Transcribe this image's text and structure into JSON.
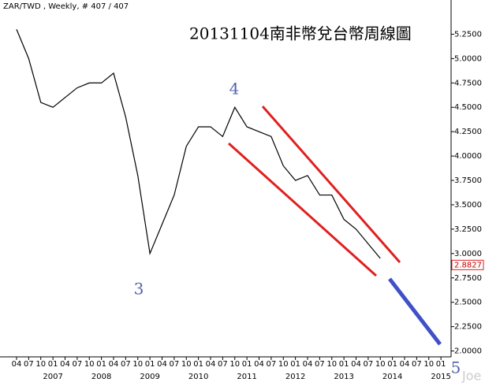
{
  "chart_data": {
    "type": "line",
    "header": "ZAR/TWD , Weekly, # 407 / 407",
    "title": "20131104南非幣兌台幣周線圖",
    "annotations": [
      "3",
      "4",
      "5"
    ],
    "watermark": "Joe",
    "categories": [
      "04",
      "07",
      "10",
      "01",
      "04",
      "07",
      "10",
      "01",
      "04",
      "07",
      "10",
      "01",
      "04",
      "07",
      "10",
      "01",
      "04",
      "07",
      "10",
      "01",
      "04",
      "07",
      "10",
      "01",
      "04",
      "07",
      "10",
      "01",
      "04",
      "07",
      "10",
      "01",
      "04",
      "07",
      "10",
      "01"
    ],
    "year_labels": [
      "2007",
      "2008",
      "2009",
      "2010",
      "2011",
      "2012",
      "2013",
      "2014",
      "2015"
    ],
    "series": [
      {
        "name": "ZAR/TWD",
        "color": "#000000",
        "values": [
          5.3,
          5.0,
          4.55,
          4.5,
          4.6,
          4.7,
          4.75,
          4.75,
          4.85,
          4.4,
          3.8,
          3.0,
          3.3,
          3.6,
          4.1,
          4.3,
          4.3,
          4.2,
          4.5,
          4.3,
          4.25,
          4.2,
          3.9,
          3.75,
          3.8,
          3.6,
          3.6,
          3.35,
          3.25,
          3.1,
          2.95,
          null,
          null,
          null,
          null,
          null
        ]
      }
    ],
    "last_value": 2.8827,
    "ylim": [
      1.94,
      5.52
    ],
    "yticks": [
      {
        "value": 2.0,
        "label": "2.0000"
      },
      {
        "value": 2.25,
        "label": "2.2500"
      },
      {
        "value": 2.5,
        "label": "2.5000"
      },
      {
        "value": 2.75,
        "label": "2.7500"
      },
      {
        "value": 3.0,
        "label": "3.0000"
      },
      {
        "value": 3.25,
        "label": "3.2500"
      },
      {
        "value": 3.5,
        "label": "3.5000"
      },
      {
        "value": 3.75,
        "label": "3.7500"
      },
      {
        "value": 4.0,
        "label": "4.0000"
      },
      {
        "value": 4.25,
        "label": "4.2500"
      },
      {
        "value": 4.5,
        "label": "4.5000"
      },
      {
        "value": 4.75,
        "label": "4.7500"
      },
      {
        "value": 5.0,
        "label": "5.0000"
      },
      {
        "value": 5.25,
        "label": "5.2500"
      }
    ],
    "grid": false
  }
}
